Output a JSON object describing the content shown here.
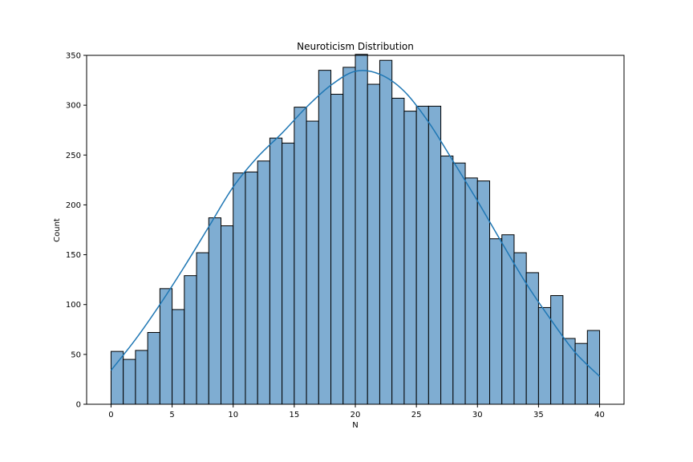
{
  "chart_data": {
    "type": "bar",
    "title": "Neuroticism Distribution",
    "xlabel": "N",
    "ylabel": "Count",
    "xlim": [
      -2,
      42
    ],
    "ylim": [
      0,
      350
    ],
    "xticks": [
      0,
      5,
      10,
      15,
      20,
      25,
      30,
      35,
      40
    ],
    "yticks": [
      0,
      50,
      100,
      150,
      200,
      250,
      300,
      350
    ],
    "bin_width": 1,
    "bins": [
      {
        "x0": 0,
        "x1": 1,
        "count": 53
      },
      {
        "x0": 1,
        "x1": 2,
        "count": 45
      },
      {
        "x0": 2,
        "x1": 3,
        "count": 54
      },
      {
        "x0": 3,
        "x1": 4,
        "count": 72
      },
      {
        "x0": 4,
        "x1": 5,
        "count": 116
      },
      {
        "x0": 5,
        "x1": 6,
        "count": 95
      },
      {
        "x0": 6,
        "x1": 7,
        "count": 129
      },
      {
        "x0": 7,
        "x1": 8,
        "count": 152
      },
      {
        "x0": 8,
        "x1": 9,
        "count": 187
      },
      {
        "x0": 9,
        "x1": 10,
        "count": 179
      },
      {
        "x0": 10,
        "x1": 11,
        "count": 232
      },
      {
        "x0": 11,
        "x1": 12,
        "count": 233
      },
      {
        "x0": 12,
        "x1": 13,
        "count": 244
      },
      {
        "x0": 13,
        "x1": 14,
        "count": 267
      },
      {
        "x0": 14,
        "x1": 15,
        "count": 262
      },
      {
        "x0": 15,
        "x1": 16,
        "count": 298
      },
      {
        "x0": 16,
        "x1": 17,
        "count": 284
      },
      {
        "x0": 17,
        "x1": 18,
        "count": 335
      },
      {
        "x0": 18,
        "x1": 19,
        "count": 311
      },
      {
        "x0": 19,
        "x1": 20,
        "count": 338
      },
      {
        "x0": 20,
        "x1": 21,
        "count": 351
      },
      {
        "x0": 21,
        "x1": 22,
        "count": 321
      },
      {
        "x0": 22,
        "x1": 23,
        "count": 345
      },
      {
        "x0": 23,
        "x1": 24,
        "count": 307
      },
      {
        "x0": 24,
        "x1": 25,
        "count": 294
      },
      {
        "x0": 25,
        "x1": 26,
        "count": 299
      },
      {
        "x0": 26,
        "x1": 27,
        "count": 299
      },
      {
        "x0": 27,
        "x1": 28,
        "count": 249
      },
      {
        "x0": 28,
        "x1": 29,
        "count": 242
      },
      {
        "x0": 29,
        "x1": 30,
        "count": 227
      },
      {
        "x0": 30,
        "x1": 31,
        "count": 224
      },
      {
        "x0": 31,
        "x1": 32,
        "count": 166
      },
      {
        "x0": 32,
        "x1": 33,
        "count": 170
      },
      {
        "x0": 33,
        "x1": 34,
        "count": 152
      },
      {
        "x0": 34,
        "x1": 35,
        "count": 132
      },
      {
        "x0": 35,
        "x1": 36,
        "count": 97
      },
      {
        "x0": 36,
        "x1": 37,
        "count": 109
      },
      {
        "x0": 37,
        "x1": 38,
        "count": 66
      },
      {
        "x0": 38,
        "x1": 39,
        "count": 61
      },
      {
        "x0": 39,
        "x1": 40,
        "count": 74
      }
    ],
    "kde_curve": {
      "x": [
        0,
        2,
        4,
        6,
        8,
        10,
        12,
        14,
        16,
        18,
        20,
        22,
        24,
        26,
        28,
        30,
        32,
        34,
        36,
        38,
        40
      ],
      "y": [
        34,
        65,
        100,
        138,
        178,
        218,
        248,
        272,
        298,
        320,
        334,
        331,
        314,
        283,
        244,
        204,
        162,
        121,
        85,
        52,
        28
      ]
    },
    "grid": false,
    "colors": {
      "bar_fill": "#7fadd2",
      "bar_edge": "#000000",
      "kde_line": "#1f77b4",
      "axes": "#000000",
      "background": "#ffffff"
    }
  }
}
